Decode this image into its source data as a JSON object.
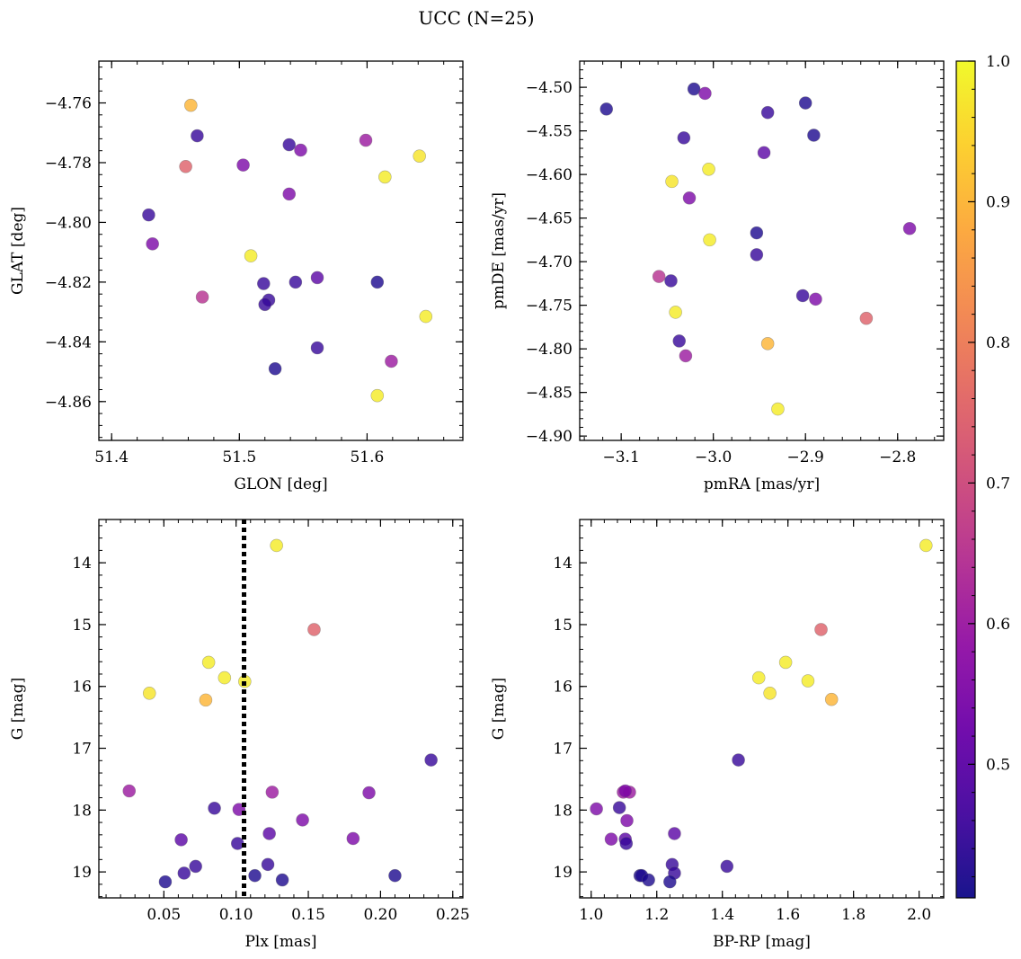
{
  "title": "UCC (N=25)",
  "chart_data": [
    {
      "type": "scatter",
      "xlabel": "GLON [deg]",
      "ylabel": "GLAT [deg]",
      "xlim": [
        51.39,
        51.675
      ],
      "ylim": [
        -4.873,
        -4.746
      ],
      "xticks": [
        51.4,
        51.5,
        51.6
      ],
      "yticks": [
        -4.76,
        -4.78,
        -4.8,
        -4.82,
        -4.84,
        -4.86
      ],
      "xtick_labels": [
        "51.4",
        "51.5",
        "51.6"
      ],
      "ytick_labels": [
        "−4.76",
        "−4.78",
        "−4.80",
        "−4.82",
        "−4.84",
        "−4.86"
      ],
      "yinvert": false,
      "points": [
        {
          "x": 51.462,
          "y": -4.7608,
          "c": 0.9
        },
        {
          "x": 51.467,
          "y": -4.771,
          "c": 0.45
        },
        {
          "x": 51.458,
          "y": -4.7813,
          "c": 0.75
        },
        {
          "x": 51.503,
          "y": -4.7808,
          "c": 0.55
        },
        {
          "x": 51.539,
          "y": -4.774,
          "c": 0.45
        },
        {
          "x": 51.548,
          "y": -4.7758,
          "c": 0.55
        },
        {
          "x": 51.599,
          "y": -4.7725,
          "c": 0.6
        },
        {
          "x": 51.641,
          "y": -4.7778,
          "c": 0.97
        },
        {
          "x": 51.614,
          "y": -4.7848,
          "c": 0.98
        },
        {
          "x": 51.539,
          "y": -4.7905,
          "c": 0.55
        },
        {
          "x": 51.429,
          "y": -4.7975,
          "c": 0.45
        },
        {
          "x": 51.432,
          "y": -4.8072,
          "c": 0.55
        },
        {
          "x": 51.509,
          "y": -4.8112,
          "c": 0.98
        },
        {
          "x": 51.471,
          "y": -4.825,
          "c": 0.65
        },
        {
          "x": 51.519,
          "y": -4.8205,
          "c": 0.45
        },
        {
          "x": 51.523,
          "y": -4.826,
          "c": 0.45
        },
        {
          "x": 51.52,
          "y": -4.8275,
          "c": 0.45
        },
        {
          "x": 51.544,
          "y": -4.82,
          "c": 0.45
        },
        {
          "x": 51.561,
          "y": -4.8185,
          "c": 0.5
        },
        {
          "x": 51.608,
          "y": -4.82,
          "c": 0.42
        },
        {
          "x": 51.646,
          "y": -4.8315,
          "c": 0.98
        },
        {
          "x": 51.561,
          "y": -4.842,
          "c": 0.45
        },
        {
          "x": 51.619,
          "y": -4.8465,
          "c": 0.6
        },
        {
          "x": 51.528,
          "y": -4.849,
          "c": 0.42
        },
        {
          "x": 51.608,
          "y": -4.858,
          "c": 0.98
        }
      ]
    },
    {
      "type": "scatter",
      "xlabel": "pmRA [mas/yr]",
      "ylabel": "pmDE [mas/yr]",
      "xlim": [
        -3.145,
        -2.75
      ],
      "ylim": [
        -4.905,
        -4.47
      ],
      "xticks": [
        -3.1,
        -3.0,
        -2.9,
        -2.8
      ],
      "yticks": [
        -4.5,
        -4.55,
        -4.6,
        -4.65,
        -4.7,
        -4.75,
        -4.8,
        -4.85,
        -4.9
      ],
      "xtick_labels": [
        "−3.1",
        "−3.0",
        "−2.9",
        "−2.8"
      ],
      "ytick_labels": [
        "−4.50",
        "−4.55",
        "−4.60",
        "−4.65",
        "−4.70",
        "−4.75",
        "−4.80",
        "−4.85",
        "−4.90"
      ],
      "yinvert": false,
      "points": [
        {
          "x": -3.116,
          "y": -4.525,
          "c": 0.42
        },
        {
          "x": -3.021,
          "y": -4.502,
          "c": 0.42
        },
        {
          "x": -3.009,
          "y": -4.507,
          "c": 0.55
        },
        {
          "x": -2.941,
          "y": -4.529,
          "c": 0.45
        },
        {
          "x": -2.9,
          "y": -4.518,
          "c": 0.42
        },
        {
          "x": -3.032,
          "y": -4.558,
          "c": 0.45
        },
        {
          "x": -2.891,
          "y": -4.555,
          "c": 0.42
        },
        {
          "x": -2.945,
          "y": -4.575,
          "c": 0.5
        },
        {
          "x": -3.005,
          "y": -4.594,
          "c": 0.98
        },
        {
          "x": -3.045,
          "y": -4.608,
          "c": 0.97
        },
        {
          "x": -3.026,
          "y": -4.627,
          "c": 0.55
        },
        {
          "x": -3.004,
          "y": -4.675,
          "c": 0.98
        },
        {
          "x": -2.953,
          "y": -4.667,
          "c": 0.42
        },
        {
          "x": -2.787,
          "y": -4.662,
          "c": 0.55
        },
        {
          "x": -2.953,
          "y": -4.692,
          "c": 0.45
        },
        {
          "x": -3.059,
          "y": -4.717,
          "c": 0.65
        },
        {
          "x": -3.046,
          "y": -4.722,
          "c": 0.45
        },
        {
          "x": -2.903,
          "y": -4.739,
          "c": 0.45
        },
        {
          "x": -2.889,
          "y": -4.743,
          "c": 0.55
        },
        {
          "x": -3.041,
          "y": -4.758,
          "c": 0.98
        },
        {
          "x": -2.834,
          "y": -4.765,
          "c": 0.75
        },
        {
          "x": -3.037,
          "y": -4.791,
          "c": 0.45
        },
        {
          "x": -2.941,
          "y": -4.794,
          "c": 0.9
        },
        {
          "x": -3.03,
          "y": -4.808,
          "c": 0.6
        },
        {
          "x": -2.93,
          "y": -4.869,
          "c": 0.98
        }
      ]
    },
    {
      "type": "scatter",
      "xlabel": "Plx [mas]",
      "ylabel": "G [mag]",
      "xlim": [
        0.005,
        0.257
      ],
      "ylim": [
        13.3,
        19.42
      ],
      "yinvert": true,
      "xticks": [
        0.05,
        0.1,
        0.15,
        0.2,
        0.25
      ],
      "yticks": [
        14,
        15,
        16,
        17,
        18,
        19
      ],
      "xtick_labels": [
        "0.05",
        "0.10",
        "0.15",
        "0.20",
        "0.25"
      ],
      "ytick_labels": [
        "14",
        "15",
        "16",
        "17",
        "18",
        "19"
      ],
      "vline": 0.1055,
      "points": [
        {
          "x": 0.128,
          "y": 13.72,
          "c": 0.98
        },
        {
          "x": 0.154,
          "y": 15.08,
          "c": 0.75
        },
        {
          "x": 0.081,
          "y": 15.61,
          "c": 0.98
        },
        {
          "x": 0.092,
          "y": 15.86,
          "c": 0.98
        },
        {
          "x": 0.106,
          "y": 15.92,
          "c": 0.98
        },
        {
          "x": 0.04,
          "y": 16.11,
          "c": 0.97
        },
        {
          "x": 0.079,
          "y": 16.22,
          "c": 0.9
        },
        {
          "x": 0.235,
          "y": 17.19,
          "c": 0.45
        },
        {
          "x": 0.026,
          "y": 17.69,
          "c": 0.6
        },
        {
          "x": 0.125,
          "y": 17.71,
          "c": 0.6
        },
        {
          "x": 0.192,
          "y": 17.72,
          "c": 0.55
        },
        {
          "x": 0.085,
          "y": 17.97,
          "c": 0.45
        },
        {
          "x": 0.102,
          "y": 17.99,
          "c": 0.55
        },
        {
          "x": 0.146,
          "y": 18.16,
          "c": 0.55
        },
        {
          "x": 0.123,
          "y": 18.38,
          "c": 0.5
        },
        {
          "x": 0.181,
          "y": 18.46,
          "c": 0.55
        },
        {
          "x": 0.062,
          "y": 18.48,
          "c": 0.5
        },
        {
          "x": 0.101,
          "y": 18.54,
          "c": 0.45
        },
        {
          "x": 0.072,
          "y": 18.91,
          "c": 0.45
        },
        {
          "x": 0.122,
          "y": 18.88,
          "c": 0.45
        },
        {
          "x": 0.064,
          "y": 19.02,
          "c": 0.45
        },
        {
          "x": 0.113,
          "y": 19.06,
          "c": 0.42
        },
        {
          "x": 0.21,
          "y": 19.06,
          "c": 0.42
        },
        {
          "x": 0.132,
          "y": 19.13,
          "c": 0.42
        },
        {
          "x": 0.051,
          "y": 19.16,
          "c": 0.42
        }
      ]
    },
    {
      "type": "scatter",
      "xlabel": "BP-RP [mag]",
      "ylabel": "G [mag]",
      "xlim": [
        0.965,
        2.075
      ],
      "ylim": [
        13.3,
        19.42
      ],
      "yinvert": true,
      "xticks": [
        1.0,
        1.2,
        1.4,
        1.6,
        1.8,
        2.0
      ],
      "yticks": [
        14,
        15,
        16,
        17,
        18,
        19
      ],
      "xtick_labels": [
        "1.0",
        "1.2",
        "1.4",
        "1.6",
        "1.8",
        "2.0"
      ],
      "ytick_labels": [
        "14",
        "15",
        "16",
        "17",
        "18",
        "19"
      ],
      "points": [
        {
          "x": 2.021,
          "y": 13.72,
          "c": 0.98
        },
        {
          "x": 1.701,
          "y": 15.08,
          "c": 0.75
        },
        {
          "x": 1.593,
          "y": 15.61,
          "c": 0.98
        },
        {
          "x": 1.511,
          "y": 15.86,
          "c": 0.98
        },
        {
          "x": 1.661,
          "y": 15.91,
          "c": 0.98
        },
        {
          "x": 1.545,
          "y": 16.11,
          "c": 0.97
        },
        {
          "x": 1.733,
          "y": 16.21,
          "c": 0.9
        },
        {
          "x": 1.449,
          "y": 17.19,
          "c": 0.45
        },
        {
          "x": 1.098,
          "y": 17.71,
          "c": 0.6
        },
        {
          "x": 1.117,
          "y": 17.71,
          "c": 0.6
        },
        {
          "x": 1.104,
          "y": 17.69,
          "c": 0.55
        },
        {
          "x": 1.016,
          "y": 17.98,
          "c": 0.55
        },
        {
          "x": 1.086,
          "y": 17.96,
          "c": 0.45
        },
        {
          "x": 1.109,
          "y": 18.17,
          "c": 0.55
        },
        {
          "x": 1.254,
          "y": 18.38,
          "c": 0.5
        },
        {
          "x": 1.061,
          "y": 18.47,
          "c": 0.55
        },
        {
          "x": 1.104,
          "y": 18.47,
          "c": 0.5
        },
        {
          "x": 1.107,
          "y": 18.54,
          "c": 0.45
        },
        {
          "x": 1.247,
          "y": 18.88,
          "c": 0.45
        },
        {
          "x": 1.414,
          "y": 18.91,
          "c": 0.45
        },
        {
          "x": 1.254,
          "y": 19.02,
          "c": 0.45
        },
        {
          "x": 1.149,
          "y": 19.06,
          "c": 0.42
        },
        {
          "x": 1.154,
          "y": 19.06,
          "c": 0.42
        },
        {
          "x": 1.175,
          "y": 19.13,
          "c": 0.42
        },
        {
          "x": 1.24,
          "y": 19.16,
          "c": 0.42
        }
      ]
    }
  ],
  "colorbar": {
    "colormap": "plasma",
    "range": [
      0.405,
      1.0
    ],
    "ticks": [
      0.5,
      0.6,
      0.7,
      0.8,
      0.9,
      1.0
    ],
    "tick_labels": [
      "0.5",
      "0.6",
      "0.7",
      "0.8",
      "0.9",
      "1.0"
    ]
  },
  "colors": {
    "vline": "#000000",
    "marker_alpha": 0.8
  }
}
